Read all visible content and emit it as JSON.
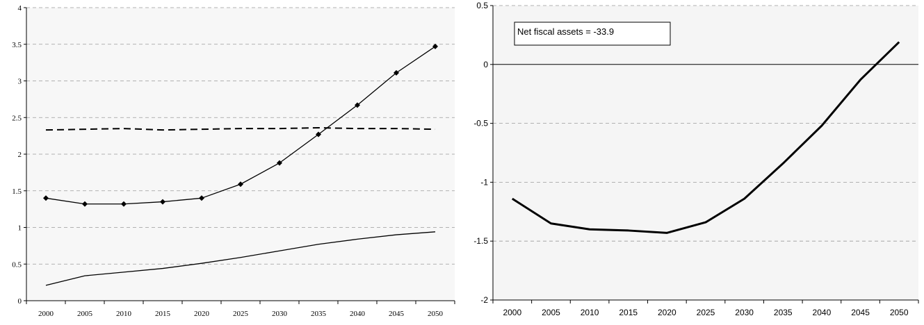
{
  "chart_data": [
    {
      "type": "line",
      "categories": [
        "2000",
        "2005",
        "2010",
        "2015",
        "2020",
        "2025",
        "2030",
        "2035",
        "2040",
        "2045",
        "2050"
      ],
      "ylim": [
        0,
        4
      ],
      "yticks": [
        "0",
        "0.5",
        "1",
        "1.5",
        "2",
        "2.5",
        "3",
        "3.5",
        "4"
      ],
      "grid": true,
      "series": [
        {
          "style": "solid-with-diamonds",
          "color": "#000000",
          "values": [
            1.4,
            1.32,
            1.32,
            1.35,
            1.4,
            1.59,
            1.88,
            2.27,
            2.67,
            3.11,
            3.47
          ]
        },
        {
          "style": "dashed",
          "color": "#000000",
          "values": [
            2.33,
            2.34,
            2.35,
            2.33,
            2.34,
            2.35,
            2.35,
            2.36,
            2.35,
            2.35,
            2.34
          ]
        },
        {
          "style": "solid",
          "color": "#000000",
          "values": [
            0.21,
            0.34,
            0.39,
            0.44,
            0.51,
            0.59,
            0.68,
            0.77,
            0.84,
            0.9,
            0.94
          ]
        }
      ]
    },
    {
      "type": "line",
      "categories": [
        "2000",
        "2005",
        "2010",
        "2015",
        "2020",
        "2025",
        "2030",
        "2035",
        "2040",
        "2045",
        "2050"
      ],
      "ylim": [
        -2,
        0.5
      ],
      "yticks": [
        "-2",
        "-1.5",
        "-1",
        "-0.5",
        "0",
        "0.5"
      ],
      "grid": true,
      "annotation": "Net fiscal assets = -33.9",
      "series": [
        {
          "style": "thick-solid",
          "color": "#000000",
          "values": [
            -1.14,
            -1.35,
            -1.4,
            -1.41,
            -1.43,
            -1.34,
            -1.14,
            -0.84,
            -0.52,
            -0.13,
            0.19
          ]
        }
      ]
    }
  ]
}
